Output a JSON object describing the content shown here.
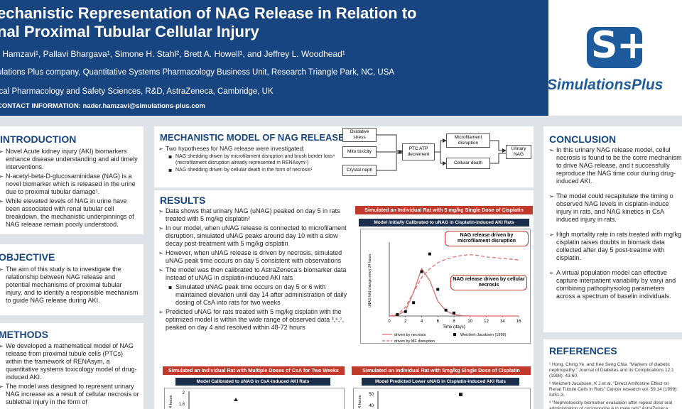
{
  "header": {
    "title_line1": "echanistic Representation of NAG Release in Relation to",
    "title_line2": "nal Proximal Tubular Cellular Injury",
    "authors": "r Hamzavi¹, Pallavi Bhargava¹, Simone H. Stahl², Brett A. Howell¹, and Jeffrey L. Woodhead¹",
    "affiliation1": "ulations Plus company, Quantitative Systems Pharmacology Business Unit, Research Triangle Park, NC, USA",
    "affiliation2": "ical Pharmacology and Safety Sciences, R&D, AstraZeneca, Cambridge, UK",
    "contact": "CONTACT INFORMATION:  nader.hamzavi@simulations-plus.com",
    "logo_text": "SimulationsPlus",
    "logo_mark_s": "S",
    "logo_mark_plus": "+"
  },
  "introduction": {
    "title": "INTRODUCTION",
    "bullets": [
      "Novel Acute kidney injury (AKI) biomarkers enhance disease understanding and aid timely interventions.",
      "N-acetyl-beta-D-glucosaminidase (NAG) is a novel biomarker which is released in the urine due to proximal tubular damage¹.",
      "While elevated levels of NAG in urine have been associated with renal tubular cell breakdown, the mechanistic underpinnings of NAG release remain poorly understood."
    ]
  },
  "objective": {
    "title": "OBJECTIVE",
    "bullets": [
      "The aim of this study is to investigate the relationship between NAG release and potential mechanisms of proximal tubular injury, and to identify a responsible mechanism to guide NAG release during AKI."
    ]
  },
  "methods": {
    "title": "METHODS",
    "bullets": [
      "We developed a mathematical model of NAG release from proximal tubule cells (PTCs) within the framework of RENAsym, a quantitative systems toxicology model of drug-induced AKI.",
      "The model was designed to represent urinary NAG increase as a result of cellular necrosis or sublethal injury in the form of"
    ]
  },
  "mechanistic_model": {
    "title": "MECHANISTIC MODEL OF NAG RELEASE",
    "lead": "Two hypotheses for NAG release were investigated:",
    "sub1": "NAG shedding driven by microfilament disruption and brush border loss⁴ (microfilament disruption already represented in RENAsym⁵)",
    "sub2": "NAG shedding driven by cellular death in the form of necrosis¹",
    "diagram": {
      "oxidative": "Oxidative stress",
      "mito": "Mito toxicity",
      "crystal": "Crystal neph",
      "ptc": "PTC ATP decrement",
      "microfilament": "Microfilament disruption",
      "celldeath": "Cellular death",
      "urinary": "Urinary NAG"
    }
  },
  "results": {
    "title": "RESULTS",
    "bullets": [
      "Data shows that urinary NAG (uNAG) peaked on day 5 in rats treated with 5 mg/kg cisplatin²",
      "In our model, when uNAG release is connected to microfilament disruption, simulated uNAG peaks around day 10 with a slow decay post-treatment with 5 mg/kg cisplatin",
      "However, when uNAG release is driven by necrosis, simulated uNAG peak time occurs on day 5 consistent with observations",
      "The model was then calibrated to AstraZeneca's biomarker data instead of uNAG in cisplatin-induced AKI rats"
    ],
    "sub_bullets": [
      "Simulated uNAG peak time occurs on day 5 or 6 with maintained elevation until day 14 after administration of daily dosing of CsA into rats for two weeks"
    ],
    "bullet_last": "Predicted uNAG for rats treated with 5 mg/kg cisplatin with the optimized model is within the wide range of observed data ³,⁶,⁷, peaked on day 4 and resolved within 48-72 hours"
  },
  "chart_main": {
    "head": "Simulated an Individual Rat with 5 mg/kg Single Dose of Cisplatin",
    "sub_pre": "Model ",
    "sub_em": "initially",
    "sub_post": " Calibrated to uNAG in Cisplatin-induced AKI Rats",
    "callout_mf": "NAG release driven by microfilament disruption",
    "callout_nec": "NAG release driven by cellular necrosis",
    "legend_nec": "driven by necrosis",
    "legend_mf": "driven by MF disruption",
    "legend_obs": "Weichert-Jacobsen (1999)"
  },
  "chart_data": [
    {
      "type": "line",
      "xlabel": "Time (days)",
      "ylabel": "uNAG fold change every 24 hours",
      "xlim": [
        0,
        16
      ],
      "xticks": [
        "0",
        "2",
        "4",
        "6",
        "8",
        "10",
        "12",
        "14",
        "16"
      ],
      "series": [
        {
          "name": "driven by necrosis",
          "x": [
            0,
            1,
            2,
            3,
            4,
            5,
            6,
            7,
            8,
            9,
            10,
            12,
            14,
            16
          ],
          "y": [
            0,
            0.05,
            0.35,
            1.6,
            3.2,
            2.4,
            1.0,
            0.35,
            0.1,
            0.02,
            0,
            0,
            0,
            0
          ]
        },
        {
          "name": "driven by MF disruption",
          "x": [
            0,
            1,
            2,
            3,
            4,
            5,
            6,
            7,
            8,
            9,
            10,
            11,
            12,
            14,
            16
          ],
          "y": [
            0,
            0.1,
            0.6,
            1.6,
            2.6,
            3.2,
            3.6,
            3.85,
            4.0,
            4.1,
            4.15,
            4.1,
            4.0,
            3.9,
            3.8
          ]
        },
        {
          "name": "Weichert-Jacobsen (1999)",
          "x": [
            1,
            2,
            3,
            4,
            5,
            6,
            7,
            8
          ],
          "y": [
            0.1,
            0.3,
            0.9,
            3.0,
            4.2,
            1.8,
            0.4,
            0.2
          ]
        }
      ]
    }
  ],
  "chart_csa": {
    "head": "Simulated an Individual Rat with Multiple Doses of CsA for Two Weeks",
    "sub": "Model Calibrated to uNAG in CsA-induced AKI Rats",
    "ytick_top": "2",
    "ytick_next": "1.8",
    "ylabel": "4 hours"
  },
  "chart_cis": {
    "head": "Simulated an Individual Rat with 5mg/kg Single Dose of Cisplatin",
    "sub": "Model Predicted Lower uNAG in Cisplatin-induced AKI Rats",
    "ytick_top": "50",
    "ytick_next": "40",
    "ylabel": "4 hours"
  },
  "conclusion": {
    "title": "CONCLUSION",
    "bullets": [
      "In this urinary NAG release model, cellul necrosis is found to be the corre mechanism to drive NAG release, and t successfully reproduce the NAG time cour during drug-induced AKI.",
      "The model could recapitulate the timing o observed NAG levels in cisplatin-induce injury in rats, and NAG kinetics in CsA induced injury in rats.",
      "High mortality rate in rats treated with mg/kg cisplatin raises doubts in biomark data collected after day 5 post-treatme with cisplatin.",
      "A virtual population model can effective capture interpatient variability by varyi and combining pathophysiolog parameters across a spectrum of baselin individuals."
    ]
  },
  "references": {
    "title": "REFERENCES",
    "items": [
      "¹ Hong, Ching Ye, and Kee Seng Chia. \"Markers of diabetic nephropathy.\" Journal of Diabetes and its Complications 12.1 (1998): 43-60.",
      "² Weichert-Jacobsen, K J et al. \"Direct Amifostine Effect on Renal Tubule Cells in Rats\" Cancer research vol. 59,14 (1999): 3451-3.",
      "³ \"Nephrotoxicity biomarker evaluation after repeat dose oral administration of cyclosporine A in male rats\" AstraZeneca."
    ]
  },
  "colors": {
    "brand": "#18457f",
    "accent_red": "#c0392b",
    "dark_navy": "#1b2f4d"
  }
}
